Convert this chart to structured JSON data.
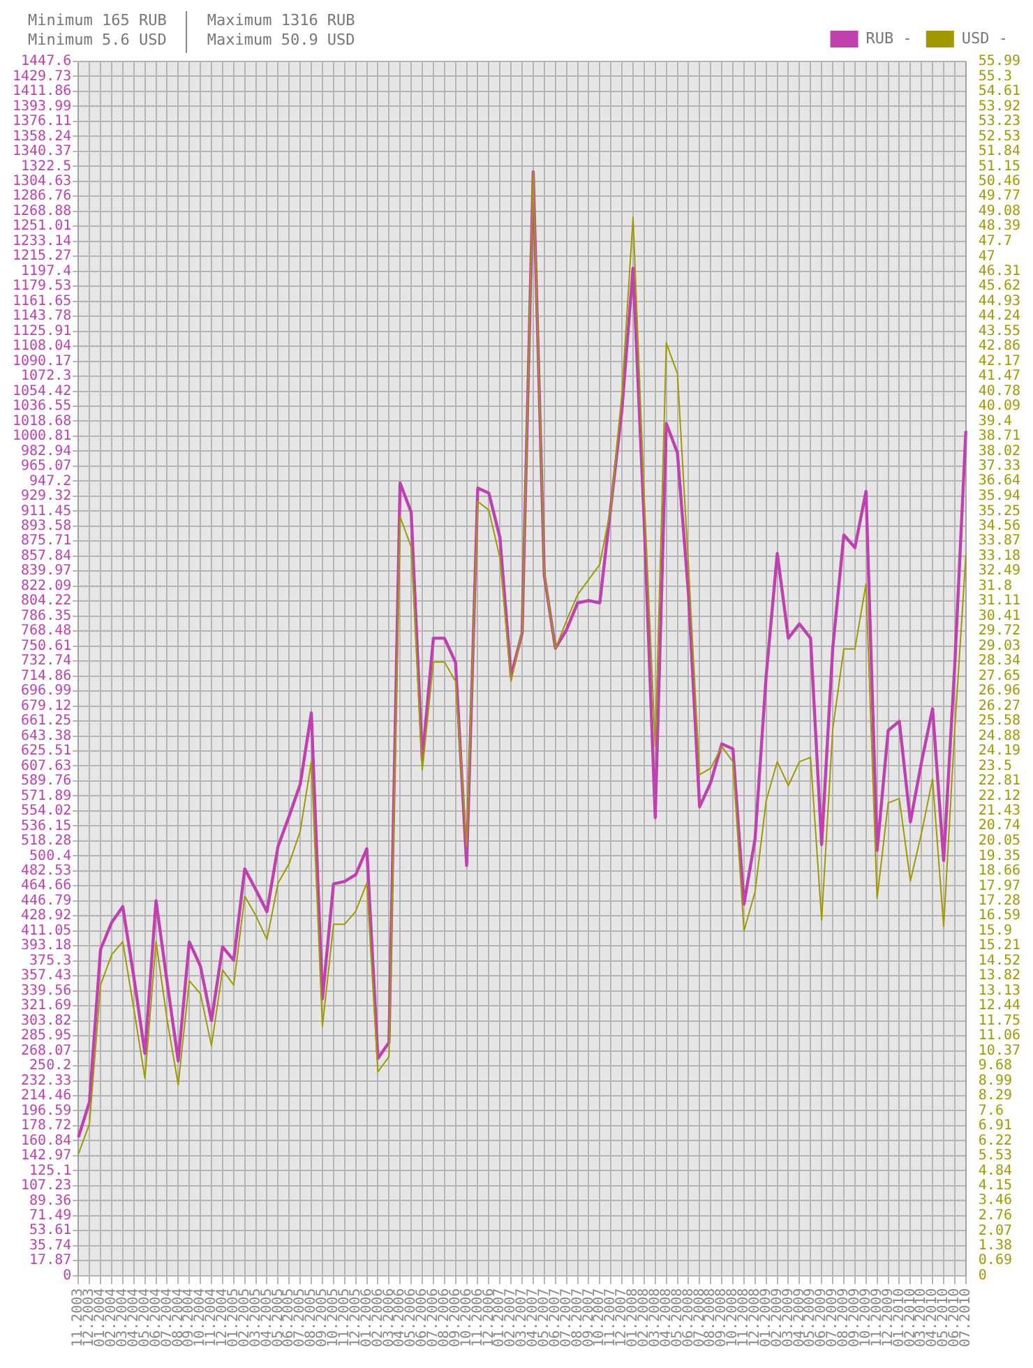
{
  "chart_data": {
    "type": "line",
    "categories": [
      "11.2003",
      "12.2003",
      "01.2004",
      "02.2004",
      "03.2004",
      "04.2004",
      "05.2004",
      "06.2004",
      "07.2004",
      "08.2004",
      "09.2004",
      "10.2004",
      "11.2004",
      "12.2004",
      "01.2005",
      "02.2005",
      "03.2005",
      "04.2005",
      "05.2005",
      "06.2005",
      "07.2005",
      "08.2005",
      "09.2005",
      "10.2005",
      "11.2005",
      "12.2005",
      "01.2006",
      "02.2006",
      "03.2006",
      "04.2006",
      "05.2006",
      "06.2006",
      "07.2006",
      "08.2006",
      "09.2006",
      "10.2006",
      "11.2006",
      "12.2006",
      "01.2007",
      "02.2007",
      "03.2007",
      "04.2007",
      "05.2007",
      "06.2007",
      "07.2007",
      "08.2007",
      "09.2007",
      "10.2007",
      "11.2007",
      "12.2007",
      "01.2008",
      "02.2008",
      "03.2008",
      "04.2008",
      "05.2008",
      "06.2008",
      "07.2008",
      "08.2008",
      "09.2008",
      "10.2008",
      "11.2008",
      "12.2008",
      "01.2009",
      "02.2009",
      "03.2009",
      "04.2009",
      "05.2009",
      "06.2009",
      "07.2009",
      "08.2009",
      "09.2009",
      "10.2009",
      "11.2009",
      "12.2009",
      "01.2010",
      "02.2010",
      "03.2010",
      "04.2010",
      "05.2010",
      "06.2010",
      "07.2010"
    ],
    "series": [
      {
        "name": "RUB -",
        "color": "#c040b0",
        "values": [
          165,
          207,
          389,
          421,
          440,
          356,
          265,
          447,
          350,
          256,
          398,
          369,
          304,
          392,
          376,
          485,
          460,
          434,
          512,
          548,
          586,
          671,
          330,
          467,
          470,
          478,
          509,
          259,
          278,
          945,
          910,
          615,
          760,
          760,
          731,
          489,
          939,
          933,
          880,
          715,
          766,
          1316,
          835,
          748,
          770,
          802,
          805,
          802,
          917,
          1033,
          1201,
          900,
          546,
          1016,
          981,
          812,
          559,
          588,
          634,
          628,
          443,
          521,
          715,
          861,
          760,
          777,
          760,
          514,
          748,
          883,
          868,
          935,
          507,
          650,
          661,
          541,
          612,
          676,
          495,
          728,
          1007
        ]
      },
      {
        "name": "USD -",
        "color": "#a09a00",
        "axis": "y2",
        "values": [
          5.6,
          7.0,
          13.4,
          14.8,
          15.4,
          12.3,
          9.1,
          15.4,
          11.8,
          8.8,
          13.6,
          13.0,
          10.6,
          14.1,
          13.4,
          17.5,
          16.6,
          15.5,
          18.1,
          19.0,
          20.5,
          23.7,
          11.5,
          16.2,
          16.2,
          16.8,
          18.1,
          9.4,
          10.1,
          35.0,
          33.6,
          23.3,
          28.3,
          28.3,
          27.4,
          19.8,
          35.7,
          35.3,
          33.1,
          27.4,
          29.7,
          50.9,
          32.4,
          28.9,
          30.2,
          31.4,
          32.1,
          32.8,
          35.4,
          40.7,
          48.8,
          36.0,
          24.4,
          43.0,
          41.6,
          32.7,
          23.1,
          23.4,
          24.4,
          23.7,
          15.9,
          17.7,
          21.9,
          23.7,
          22.6,
          23.7,
          23.9,
          16.4,
          25.2,
          28.9,
          28.9,
          31.9,
          17.4,
          21.8,
          22.0,
          18.2,
          20.4,
          22.9,
          16.1,
          25.2,
          33.2
        ]
      }
    ],
    "ylim": [
      0,
      1447.6
    ],
    "yticks": [
      0,
      17.87,
      35.74,
      53.61,
      71.49,
      89.36,
      107.23,
      125.1,
      142.97,
      160.84,
      178.72,
      196.59,
      214.46,
      232.33,
      250.2,
      268.07,
      285.95,
      303.82,
      321.69,
      339.56,
      357.43,
      375.3,
      393.18,
      411.05,
      428.92,
      446.79,
      464.66,
      482.53,
      500.4,
      518.28,
      536.15,
      554.02,
      571.89,
      589.76,
      607.63,
      625.51,
      643.38,
      661.25,
      679.12,
      696.99,
      714.86,
      732.74,
      750.61,
      768.48,
      786.35,
      804.22,
      822.09,
      839.97,
      857.84,
      875.71,
      893.58,
      911.45,
      929.32,
      947.2,
      965.07,
      982.94,
      1000.81,
      1018.68,
      1036.55,
      1054.42,
      1072.3,
      1090.17,
      1108.04,
      1125.91,
      1143.78,
      1161.65,
      1179.53,
      1197.4,
      1215.27,
      1233.14,
      1251.01,
      1268.88,
      1286.76,
      1304.63,
      1322.5,
      1340.37,
      1358.24,
      1376.11,
      1393.99,
      1411.86,
      1429.73,
      1447.6
    ],
    "y2lim": [
      0,
      55.99
    ],
    "y2ticks": [
      0,
      0.69,
      1.38,
      2.07,
      2.76,
      3.46,
      4.15,
      4.84,
      5.53,
      6.22,
      6.91,
      7.6,
      8.29,
      8.99,
      9.68,
      10.37,
      11.06,
      11.75,
      12.44,
      13.13,
      13.82,
      14.52,
      15.21,
      15.9,
      16.59,
      17.28,
      17.97,
      18.66,
      19.35,
      20.05,
      20.74,
      21.43,
      22.12,
      22.81,
      23.5,
      24.19,
      24.88,
      25.58,
      26.27,
      26.96,
      27.65,
      28.34,
      29.03,
      29.72,
      30.41,
      31.11,
      31.8,
      32.49,
      33.18,
      33.87,
      34.56,
      35.25,
      35.94,
      36.64,
      37.33,
      38.02,
      38.71,
      39.4,
      40.09,
      40.78,
      41.47,
      42.17,
      42.86,
      43.55,
      44.24,
      44.93,
      45.62,
      46.31,
      47,
      47.7,
      48.39,
      49.08,
      49.77,
      50.46,
      51.15,
      51.84,
      52.53,
      53.23,
      53.92,
      54.61,
      55.3,
      55.99
    ],
    "grid": true,
    "legend": "top",
    "annotations": [
      "Minimum 165 RUB",
      "Minimum 5.6 USD",
      "Maximum 1316 RUB",
      "Maximum 50.9 USD"
    ]
  }
}
